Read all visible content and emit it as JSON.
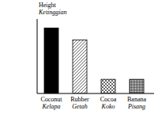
{
  "chart_data": {
    "type": "bar",
    "y_label": "Height\nKetinggian",
    "categories": [
      "Coconut\nKelapa",
      "Rubber\nGetah",
      "Cocoa\nKoko",
      "Banana\nPisang"
    ],
    "values": [
      88,
      72,
      19,
      19
    ],
    "colors": [
      "#000000",
      "#444444",
      "#444444",
      "#444444"
    ],
    "ylim": [
      0,
      100
    ],
    "tick_labels": false,
    "grid": false
  }
}
